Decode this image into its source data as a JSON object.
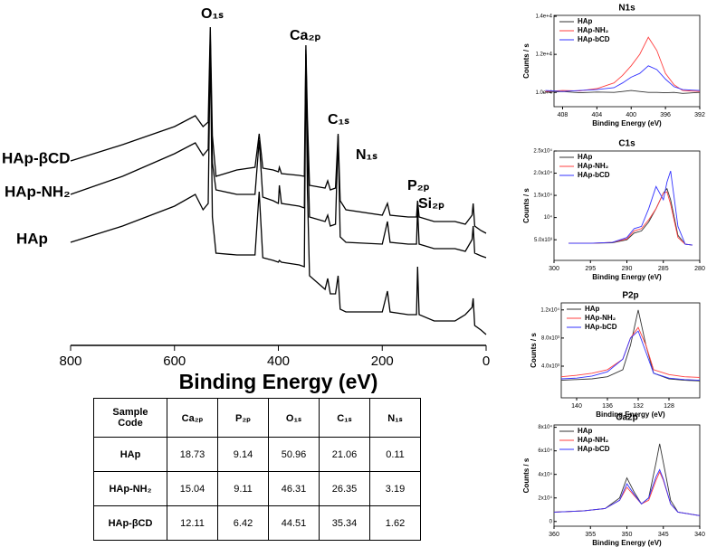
{
  "chart_data": [
    {
      "type": "line",
      "xlabel": "Binding Energy (eV)",
      "xlim": [
        800,
        0
      ],
      "xticks": [
        800,
        600,
        400,
        200,
        0
      ],
      "ylim": [
        0,
        360
      ],
      "annotations": [
        "O₁ₛ",
        "Ca₂ₚ",
        "N₁ₛ",
        "C₁ₛ",
        "P₂ₚ",
        "Si₂ₚ"
      ],
      "x": [
        800,
        700,
        600,
        560,
        545,
        535,
        531,
        527,
        520,
        480,
        445,
        437,
        430,
        410,
        400,
        398,
        394,
        360,
        350,
        347,
        344,
        340,
        310,
        305,
        300,
        290,
        285,
        281,
        270,
        200,
        190,
        185,
        150,
        134,
        132,
        129,
        100,
        60,
        40,
        27,
        25,
        22,
        10,
        0
      ],
      "series": [
        {
          "name": "HAp-βCD",
          "color": "#000000",
          "values": [
            204,
            222,
            242,
            254,
            242,
            247,
            352,
            232,
            187,
            194,
            197,
            234,
            196,
            194,
            192,
            197,
            190,
            188,
            187,
            332,
            252,
            177,
            174,
            182,
            172,
            174,
            234,
            160,
            150,
            144,
            157,
            144,
            142,
            142,
            160,
            142,
            137,
            137,
            134,
            144,
            157,
            132,
            127,
            124
          ]
        },
        {
          "name": "HAp-NH₂",
          "color": "#000000",
          "values": [
            167,
            187,
            212,
            224,
            210,
            217,
            342,
            202,
            172,
            167,
            167,
            227,
            164,
            160,
            157,
            177,
            157,
            154,
            152,
            327,
            232,
            142,
            137,
            144,
            132,
            134,
            232,
            120,
            114,
            112,
            137,
            114,
            112,
            112,
            152,
            112,
            107,
            107,
            104,
            117,
            132,
            102,
            99,
            97
          ]
        },
        {
          "name": "HAp",
          "color": "#000000",
          "values": [
            114,
            132,
            154,
            167,
            150,
            157,
            332,
            142,
            102,
            100,
            100,
            170,
            97,
            94,
            92,
            94,
            92,
            89,
            87,
            322,
            172,
            77,
            62,
            74,
            57,
            57,
            77,
            40,
            37,
            37,
            60,
            37,
            34,
            34,
            87,
            34,
            27,
            27,
            34,
            42,
            52,
            22,
            17,
            12
          ]
        }
      ]
    },
    {
      "type": "line",
      "title": "N1s",
      "xlabel": "Binding Energy (eV)",
      "ylabel": "Counts / s",
      "xlim": [
        409,
        392
      ],
      "xticks": [
        408,
        404,
        400,
        396,
        392
      ],
      "ylim": [
        9250,
        14050
      ],
      "yticks": [
        {
          "value": 10000,
          "label": "1.0e+4"
        },
        {
          "value": 12000,
          "label": "1.2e+4"
        },
        {
          "value": 14000,
          "label": "1.4e+4"
        }
      ],
      "x": [
        410,
        408,
        406,
        404,
        402,
        401,
        400,
        399,
        398,
        397,
        396,
        395,
        394,
        392
      ],
      "series": [
        {
          "name": "HAp",
          "color": "#333333",
          "values": [
            10000,
            10050,
            9980,
            10020,
            10000,
            10050,
            10100,
            10050,
            10000,
            10000,
            9980,
            10000,
            9950,
            10000
          ]
        },
        {
          "name": "HAp-NH₂",
          "color": "#ff4040",
          "values": [
            10050,
            10100,
            10080,
            10200,
            10500,
            10900,
            11400,
            12000,
            12900,
            12200,
            11000,
            10400,
            10100,
            10050
          ]
        },
        {
          "name": "HAp-bCD",
          "color": "#3333ff",
          "values": [
            10100,
            10050,
            10100,
            10150,
            10250,
            10500,
            10800,
            11000,
            11400,
            11200,
            10700,
            10300,
            10150,
            10100
          ]
        }
      ]
    },
    {
      "type": "line",
      "title": "C1s",
      "xlabel": "Binding Energy (eV)",
      "ylabel": "Counts / s",
      "xlim": [
        300,
        280
      ],
      "xticks": [
        300,
        295,
        290,
        285,
        280
      ],
      "ylim": [
        350,
        25000
      ],
      "yticks": [
        {
          "value": 5000,
          "label": "5.0x10³"
        },
        {
          "value": 10000,
          "label": "10⁴"
        },
        {
          "value": 15000,
          "label": "1.5x10⁴"
        },
        {
          "value": 20000,
          "label": "2.0x10⁴"
        },
        {
          "value": 25000,
          "label": "2.5x10⁴"
        }
      ],
      "x": [
        298,
        295,
        292,
        290,
        289,
        288,
        287,
        286,
        285,
        284.5,
        284,
        283,
        282,
        281
      ],
      "series": [
        {
          "name": "HAp",
          "color": "#333333",
          "values": [
            4200,
            4200,
            4300,
            5000,
            6500,
            7000,
            9000,
            12000,
            15500,
            16500,
            14000,
            6000,
            4000,
            3800
          ]
        },
        {
          "name": "HAp-NH₂",
          "color": "#ff4040",
          "values": [
            4200,
            4200,
            4400,
            5200,
            7000,
            7500,
            9500,
            12000,
            15500,
            15800,
            13000,
            5500,
            4000,
            3800
          ]
        },
        {
          "name": "HAp-bCD",
          "color": "#3333ff",
          "values": [
            4200,
            4200,
            4400,
            5500,
            7500,
            8000,
            12000,
            17000,
            14000,
            18000,
            20500,
            8000,
            4000,
            3800
          ]
        }
      ]
    },
    {
      "type": "line",
      "title": "P2p",
      "xlabel": "Binding Energy (eV)",
      "ylabel": "Counts / s",
      "xlim": [
        142,
        124
      ],
      "xticks": [
        140,
        136,
        132,
        128
      ],
      "ylim": [
        -500,
        13000
      ],
      "yticks": [
        {
          "value": 4000,
          "label": "4.0x10³"
        },
        {
          "value": 8000,
          "label": "8.0x10³"
        },
        {
          "value": 12000,
          "label": "1.2x10⁴"
        }
      ],
      "x": [
        142,
        140,
        138,
        136,
        134,
        133,
        132,
        131,
        130,
        128,
        126,
        124
      ],
      "series": [
        {
          "name": "HAp",
          "color": "#333333",
          "values": [
            2000,
            2100,
            2200,
            2500,
            3500,
            7000,
            12000,
            7000,
            3000,
            2200,
            2000,
            1900
          ]
        },
        {
          "name": "HAp-NH₂",
          "color": "#ff4040",
          "values": [
            2500,
            2700,
            3000,
            3500,
            5000,
            8000,
            9500,
            7000,
            3500,
            2800,
            2500,
            2400
          ]
        },
        {
          "name": "HAp-bCD",
          "color": "#3333ff",
          "values": [
            2200,
            2300,
            2600,
            3200,
            5000,
            8000,
            9000,
            6000,
            3000,
            2300,
            2100,
            2000
          ]
        }
      ]
    },
    {
      "type": "line",
      "title": "Ca2p",
      "xlabel": "Binding Energy (eV)",
      "ylabel": "Counts / s",
      "xlim": [
        360,
        340
      ],
      "xticks": [
        360,
        355,
        350,
        345,
        340
      ],
      "ylim": [
        -4000,
        82000
      ],
      "yticks": [
        0,
        {
          "value": 20000,
          "label": "2x10⁴"
        },
        {
          "value": 40000,
          "label": "4x10⁴"
        },
        {
          "value": 60000,
          "label": "6x10⁴"
        },
        {
          "value": 80000,
          "label": "8x10⁴"
        }
      ],
      "x": [
        360,
        356,
        353,
        351,
        350,
        349,
        348,
        347,
        346,
        345.5,
        345,
        344,
        343,
        340
      ],
      "series": [
        {
          "name": "HAp",
          "color": "#333333",
          "values": [
            8000,
            9000,
            11000,
            20000,
            37000,
            25000,
            15000,
            20000,
            50000,
            66000,
            50000,
            18000,
            8000,
            5000
          ]
        },
        {
          "name": "HAp-NH₂",
          "color": "#ff4040",
          "values": [
            8000,
            9000,
            11000,
            18000,
            29000,
            22000,
            15000,
            18000,
            35000,
            42000,
            35000,
            15000,
            8000,
            5000
          ]
        },
        {
          "name": "HAp-bCD",
          "color": "#3333ff",
          "values": [
            8000,
            9000,
            11000,
            18000,
            32000,
            23000,
            15000,
            20000,
            38000,
            44000,
            36000,
            15000,
            8000,
            5000
          ]
        }
      ]
    }
  ],
  "table": {
    "header": [
      "Sample Code",
      "Ca₂ₚ",
      "P₂ₚ",
      "O₁ₛ",
      "C₁ₛ",
      "N₁ₛ"
    ],
    "rows": [
      [
        "HAp",
        "18.73",
        "9.14",
        "50.96",
        "21.06",
        "0.11"
      ],
      [
        "HAp-NH₂",
        "15.04",
        "9.11",
        "46.31",
        "26.35",
        "3.19"
      ],
      [
        "HAp-βCD",
        "12.11",
        "6.42",
        "44.51",
        "35.34",
        "1.62"
      ]
    ]
  }
}
